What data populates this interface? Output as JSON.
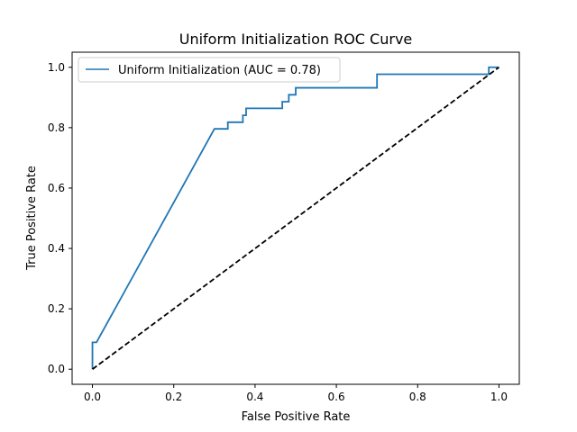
{
  "chart_data": {
    "type": "line",
    "title": "Uniform Initialization ROC Curve",
    "xlabel": "False Positive Rate",
    "ylabel": "True Positive Rate",
    "xlim": [
      -0.05,
      1.05
    ],
    "ylim": [
      -0.05,
      1.05
    ],
    "xticks": [
      0.0,
      0.2,
      0.4,
      0.6,
      0.8,
      1.0
    ],
    "yticks": [
      0.0,
      0.2,
      0.4,
      0.6,
      0.8,
      1.0
    ],
    "xtick_labels": [
      "0.0",
      "0.2",
      "0.4",
      "0.6",
      "0.8",
      "1.0"
    ],
    "ytick_labels": [
      "0.0",
      "0.2",
      "0.4",
      "0.6",
      "0.8",
      "1.0"
    ],
    "grid": false,
    "legend_position": "upper-left",
    "series": [
      {
        "name": "Uniform Initialization (AUC = 0.78)",
        "color": "#1f77b4",
        "style": "solid",
        "x": [
          0.0,
          0.0,
          0.0,
          0.01,
          0.3,
          0.333,
          0.333,
          0.37,
          0.37,
          0.378,
          0.378,
          0.467,
          0.467,
          0.483,
          0.483,
          0.5,
          0.5,
          0.7,
          0.7,
          0.975,
          0.975,
          1.0
        ],
        "y": [
          0.0,
          0.022,
          0.089,
          0.089,
          0.796,
          0.796,
          0.818,
          0.818,
          0.841,
          0.841,
          0.864,
          0.864,
          0.886,
          0.886,
          0.909,
          0.909,
          0.932,
          0.932,
          0.977,
          0.977,
          1.0,
          1.0
        ]
      },
      {
        "color": "#000000",
        "style": "dashed",
        "x": [
          0.0,
          1.0
        ],
        "y": [
          0.0,
          1.0
        ]
      }
    ]
  }
}
